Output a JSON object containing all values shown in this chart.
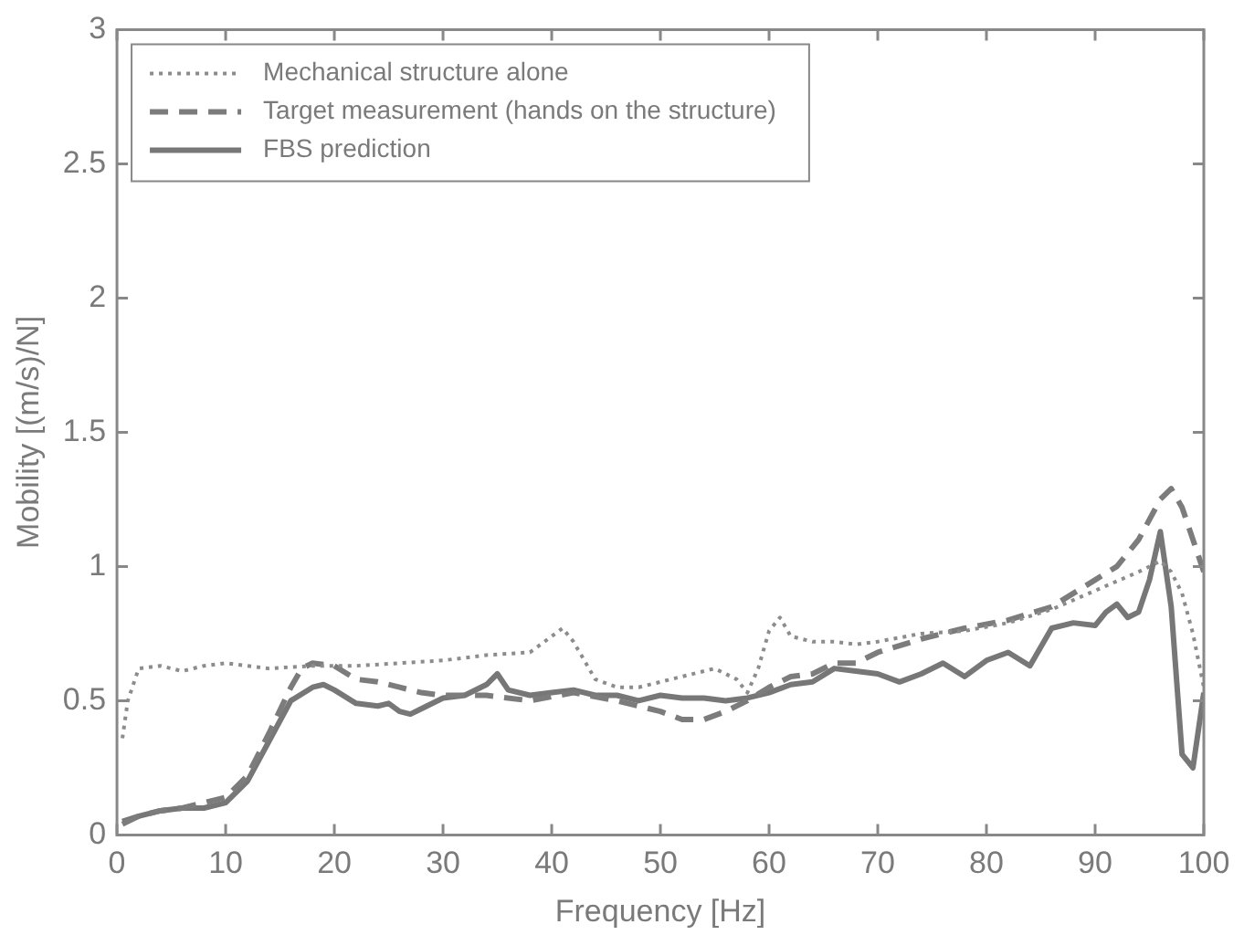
{
  "chart_data": {
    "type": "line",
    "xlabel": "Frequency [Hz]",
    "ylabel": "Mobility [(m/s)/N]",
    "xlim": [
      0,
      100
    ],
    "xticks": [
      0,
      10,
      20,
      30,
      40,
      50,
      60,
      70,
      80,
      90,
      100
    ],
    "ylim": [
      0,
      3
    ],
    "yticks": [
      0,
      0.5,
      1,
      1.5,
      2,
      2.5,
      3
    ],
    "grid": false,
    "legend": "top left",
    "marker": "none",
    "series": [
      {
        "name": "Mechanical structure alone",
        "color": "#8c8c8c",
        "line_style": "dotted",
        "x": [
          0.5,
          1,
          2,
          4,
          6,
          8,
          10,
          14,
          18,
          22,
          26,
          30,
          34,
          38,
          40,
          41,
          42,
          44,
          46,
          48,
          50,
          52,
          54,
          55,
          57,
          58,
          59,
          60,
          61,
          62,
          64,
          66,
          68,
          70,
          74,
          78,
          82,
          86,
          90,
          94,
          96,
          97,
          98,
          99,
          100
        ],
        "values": [
          0.36,
          0.5,
          0.62,
          0.63,
          0.61,
          0.63,
          0.64,
          0.62,
          0.63,
          0.63,
          0.64,
          0.65,
          0.67,
          0.68,
          0.74,
          0.77,
          0.72,
          0.58,
          0.55,
          0.55,
          0.57,
          0.59,
          0.61,
          0.62,
          0.58,
          0.53,
          0.62,
          0.76,
          0.81,
          0.74,
          0.72,
          0.72,
          0.71,
          0.72,
          0.75,
          0.76,
          0.79,
          0.84,
          0.91,
          0.98,
          1.02,
          0.98,
          0.9,
          0.75,
          0.55
        ]
      },
      {
        "name": "Target measurement (hands on the structure)",
        "color": "#7c7c7c",
        "line_style": "dashed",
        "x": [
          0.5,
          2,
          4,
          6,
          8,
          10,
          12,
          14,
          16,
          17,
          18,
          20,
          22,
          24,
          26,
          28,
          30,
          34,
          38,
          42,
          46,
          50,
          52,
          54,
          56,
          58,
          60,
          62,
          64,
          66,
          68,
          70,
          74,
          78,
          82,
          86,
          90,
          92,
          94,
          96,
          97,
          98,
          100
        ],
        "values": [
          0.04,
          0.07,
          0.09,
          0.1,
          0.12,
          0.14,
          0.22,
          0.38,
          0.55,
          0.62,
          0.64,
          0.63,
          0.58,
          0.57,
          0.55,
          0.53,
          0.52,
          0.52,
          0.5,
          0.53,
          0.5,
          0.46,
          0.43,
          0.43,
          0.46,
          0.5,
          0.55,
          0.59,
          0.6,
          0.64,
          0.64,
          0.68,
          0.73,
          0.77,
          0.8,
          0.85,
          0.95,
          1.0,
          1.1,
          1.25,
          1.29,
          1.22,
          0.98
        ]
      },
      {
        "name": "FBS prediction",
        "color": "#777777",
        "line_style": "solid",
        "x": [
          0.5,
          2,
          4,
          6,
          8,
          10,
          12,
          14,
          16,
          18,
          19,
          20,
          22,
          24,
          25,
          26,
          27,
          28,
          30,
          32,
          34,
          35,
          36,
          38,
          40,
          42,
          44,
          46,
          48,
          50,
          52,
          54,
          56,
          58,
          60,
          62,
          64,
          66,
          68,
          70,
          72,
          74,
          76,
          78,
          80,
          82,
          84,
          86,
          88,
          90,
          91,
          92,
          93,
          94,
          95,
          96,
          97,
          98,
          99,
          100
        ],
        "values": [
          0.05,
          0.07,
          0.09,
          0.1,
          0.1,
          0.12,
          0.2,
          0.35,
          0.5,
          0.55,
          0.56,
          0.54,
          0.49,
          0.48,
          0.49,
          0.46,
          0.45,
          0.47,
          0.51,
          0.52,
          0.56,
          0.6,
          0.54,
          0.52,
          0.53,
          0.54,
          0.52,
          0.52,
          0.5,
          0.52,
          0.51,
          0.51,
          0.5,
          0.51,
          0.53,
          0.56,
          0.57,
          0.62,
          0.61,
          0.6,
          0.57,
          0.6,
          0.64,
          0.59,
          0.65,
          0.68,
          0.63,
          0.77,
          0.79,
          0.78,
          0.83,
          0.86,
          0.81,
          0.83,
          0.95,
          1.13,
          0.85,
          0.3,
          0.25,
          0.53
        ]
      }
    ]
  }
}
